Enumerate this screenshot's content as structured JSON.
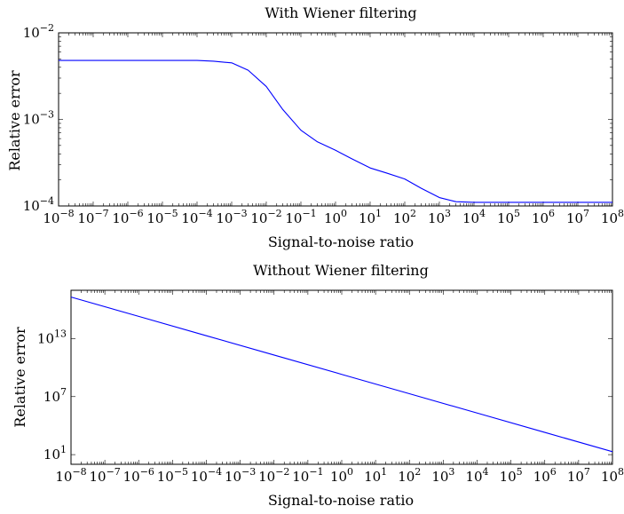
{
  "chart_data": [
    {
      "type": "line",
      "title": "With Wiener filtering",
      "xlabel": "Signal-to-noise ratio",
      "ylabel": "Relative error",
      "xscale": "log",
      "yscale": "log",
      "xlim": [
        1e-08,
        100000000.0
      ],
      "ylim": [
        0.0001,
        0.01
      ],
      "xticks": [
        -8,
        -7,
        -6,
        -5,
        -4,
        -3,
        -2,
        -1,
        0,
        1,
        2,
        3,
        4,
        5,
        6,
        7,
        8
      ],
      "yticks": [
        -4,
        -3,
        -2
      ],
      "grid": false,
      "color": "#0000ff",
      "series": [
        {
          "x": [
            1e-08,
            1e-07,
            1e-06,
            1e-05,
            0.0001,
            0.0003,
            0.001,
            0.003,
            0.01,
            0.03,
            0.1,
            0.3,
            1,
            3,
            10,
            30,
            100,
            300,
            1000,
            3000,
            10000,
            100000,
            1000000,
            10000000,
            100000000
          ],
          "y": [
            0.0048,
            0.0048,
            0.0048,
            0.0048,
            0.0048,
            0.0047,
            0.0045,
            0.0037,
            0.0024,
            0.0013,
            0.00075,
            0.00055,
            0.00044,
            0.00035,
            0.000275,
            0.00024,
            0.000205,
            0.00016,
            0.000125,
            0.000112,
            0.00011,
            0.00011,
            0.00011,
            0.00011,
            0.00011
          ]
        }
      ]
    },
    {
      "type": "line",
      "title": "Without Wiener filtering",
      "xlabel": "Signal-to-noise ratio",
      "ylabel": "Relative error",
      "xscale": "log",
      "yscale": "log",
      "xlim": [
        1e-08,
        100000000.0
      ],
      "ylim": [
        1.0,
        1e+18
      ],
      "xticks": [
        -8,
        -7,
        -6,
        -5,
        -4,
        -3,
        -2,
        -1,
        0,
        1,
        2,
        3,
        4,
        5,
        6,
        7,
        8
      ],
      "yticks": [
        1,
        7,
        13
      ],
      "grid": false,
      "color": "#0000ff",
      "series": [
        {
          "x": [
            1e-08,
            1e-06,
            0.0001,
            0.01,
            1,
            100,
            10000,
            1000000,
            100000000
          ],
          "y": [
            2e+17,
            2000000000000000.0,
            20000000000000.0,
            200000000000.0,
            2000000000.0,
            20000000.0,
            200000.0,
            2000.0,
            20
          ]
        }
      ]
    }
  ]
}
